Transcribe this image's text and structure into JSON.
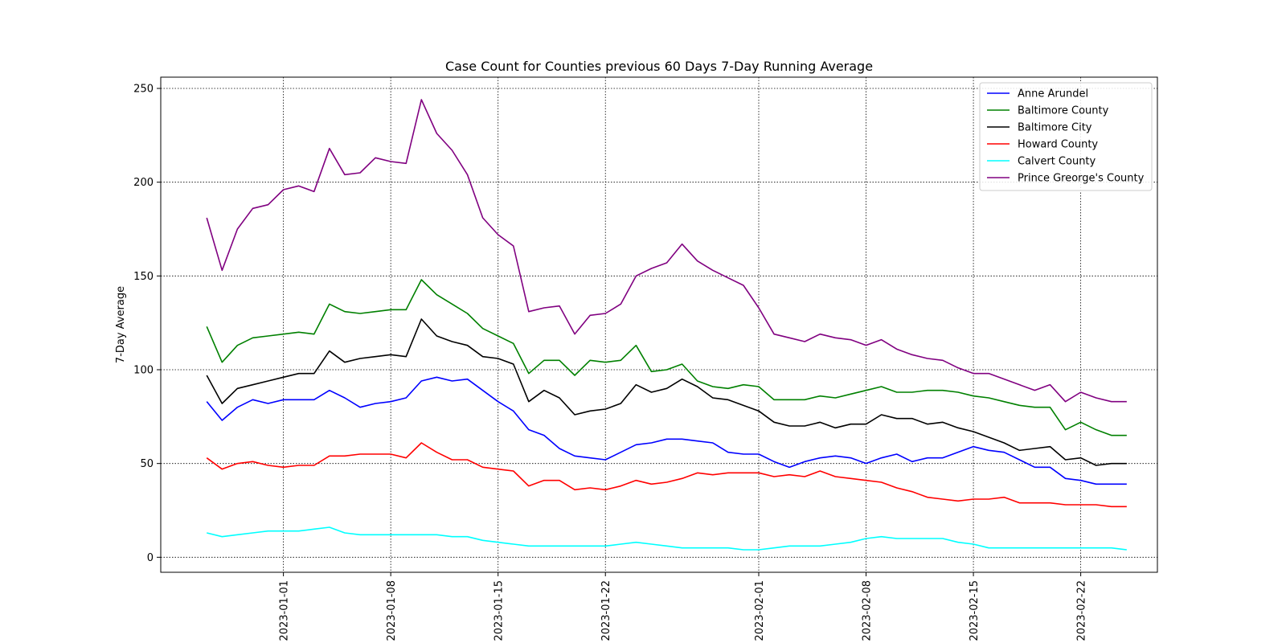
{
  "chart_data": {
    "type": "line",
    "title": "Case Count for Counties previous 60 Days 7-Day Running Average",
    "xlabel": "",
    "ylabel": "7-Day Average",
    "ylim": [
      -8,
      256
    ],
    "xlim": [
      "2022-12-24",
      "2023-02-27"
    ],
    "grid": true,
    "grid_style": "dotted",
    "legend_position": "top-right",
    "y_ticks": [
      0,
      50,
      100,
      150,
      200,
      250
    ],
    "x_ticks": [
      "2023-01-01",
      "2023-01-08",
      "2023-01-15",
      "2023-01-22",
      "2023-02-01",
      "2023-02-08",
      "2023-02-15",
      "2023-02-22"
    ],
    "x": [
      "2022-12-27",
      "2022-12-28",
      "2022-12-29",
      "2022-12-30",
      "2022-12-31",
      "2023-01-01",
      "2023-01-02",
      "2023-01-03",
      "2023-01-04",
      "2023-01-05",
      "2023-01-06",
      "2023-01-07",
      "2023-01-08",
      "2023-01-09",
      "2023-01-10",
      "2023-01-11",
      "2023-01-12",
      "2023-01-13",
      "2023-01-14",
      "2023-01-15",
      "2023-01-16",
      "2023-01-17",
      "2023-01-18",
      "2023-01-19",
      "2023-01-20",
      "2023-01-21",
      "2023-01-22",
      "2023-01-23",
      "2023-01-24",
      "2023-01-25",
      "2023-01-26",
      "2023-01-27",
      "2023-01-28",
      "2023-01-29",
      "2023-01-30",
      "2023-01-31",
      "2023-02-01",
      "2023-02-02",
      "2023-02-03",
      "2023-02-04",
      "2023-02-05",
      "2023-02-06",
      "2023-02-07",
      "2023-02-08",
      "2023-02-09",
      "2023-02-10",
      "2023-02-11",
      "2023-02-12",
      "2023-02-13",
      "2023-02-14",
      "2023-02-15",
      "2023-02-16",
      "2023-02-17",
      "2023-02-18",
      "2023-02-19",
      "2023-02-20",
      "2023-02-21",
      "2023-02-22",
      "2023-02-23",
      "2023-02-24",
      "2023-02-25"
    ],
    "series": [
      {
        "name": "Anne Arundel",
        "color": "#0000ff",
        "values": [
          83,
          73,
          80,
          84,
          82,
          84,
          84,
          84,
          89,
          85,
          80,
          82,
          83,
          85,
          94,
          96,
          94,
          95,
          89,
          83,
          78,
          68,
          65,
          58,
          54,
          53,
          52,
          56,
          60,
          61,
          63,
          63,
          62,
          61,
          56,
          55,
          55,
          51,
          48,
          51,
          53,
          54,
          53,
          50,
          53,
          55,
          51,
          53,
          53,
          56,
          59,
          57,
          56,
          52,
          48,
          48,
          42,
          41,
          39,
          39,
          39
        ]
      },
      {
        "name": "Baltimore County",
        "color": "#008000",
        "values": [
          123,
          104,
          113,
          117,
          118,
          119,
          120,
          119,
          135,
          131,
          130,
          131,
          132,
          132,
          148,
          140,
          135,
          130,
          122,
          118,
          114,
          98,
          105,
          105,
          97,
          105,
          104,
          105,
          113,
          99,
          100,
          103,
          94,
          91,
          90,
          92,
          91,
          84,
          84,
          84,
          86,
          85,
          87,
          89,
          91,
          88,
          88,
          89,
          89,
          88,
          86,
          85,
          83,
          81,
          80,
          80,
          68,
          72,
          68,
          65,
          65
        ]
      },
      {
        "name": "Baltimore City",
        "color": "#000000",
        "values": [
          97,
          82,
          90,
          92,
          94,
          96,
          98,
          98,
          110,
          104,
          106,
          107,
          108,
          107,
          127,
          118,
          115,
          113,
          107,
          106,
          103,
          83,
          89,
          85,
          76,
          78,
          79,
          82,
          92,
          88,
          90,
          95,
          91,
          85,
          84,
          81,
          78,
          72,
          70,
          70,
          72,
          69,
          71,
          71,
          76,
          74,
          74,
          71,
          72,
          69,
          67,
          64,
          61,
          57,
          58,
          59,
          52,
          53,
          49,
          50,
          50
        ]
      },
      {
        "name": "Howard County",
        "color": "#ff0000",
        "values": [
          53,
          47,
          50,
          51,
          49,
          48,
          49,
          49,
          54,
          54,
          55,
          55,
          55,
          53,
          61,
          56,
          52,
          52,
          48,
          47,
          46,
          38,
          41,
          41,
          36,
          37,
          36,
          38,
          41,
          39,
          40,
          42,
          45,
          44,
          45,
          45,
          45,
          43,
          44,
          43,
          46,
          43,
          42,
          41,
          40,
          37,
          35,
          32,
          31,
          30,
          31,
          31,
          32,
          29,
          29,
          29,
          28,
          28,
          28,
          27,
          27
        ]
      },
      {
        "name": "Calvert County",
        "color": "#00ffff",
        "values": [
          13,
          11,
          12,
          13,
          14,
          14,
          14,
          15,
          16,
          13,
          12,
          12,
          12,
          12,
          12,
          12,
          11,
          11,
          9,
          8,
          7,
          6,
          6,
          6,
          6,
          6,
          6,
          7,
          8,
          7,
          6,
          5,
          5,
          5,
          5,
          4,
          4,
          5,
          6,
          6,
          6,
          7,
          8,
          10,
          11,
          10,
          10,
          10,
          10,
          8,
          7,
          5,
          5,
          5,
          5,
          5,
          5,
          5,
          5,
          5,
          4
        ]
      },
      {
        "name": "Prince Greorge's County",
        "color": "#800080",
        "values": [
          181,
          153,
          175,
          186,
          188,
          196,
          198,
          195,
          218,
          204,
          205,
          213,
          211,
          210,
          244,
          226,
          217,
          204,
          181,
          172,
          166,
          131,
          133,
          134,
          119,
          129,
          130,
          135,
          150,
          154,
          157,
          167,
          158,
          153,
          149,
          145,
          133,
          119,
          117,
          115,
          119,
          117,
          116,
          113,
          116,
          111,
          108,
          106,
          105,
          101,
          98,
          98,
          95,
          92,
          89,
          92,
          83,
          88,
          85,
          83,
          83
        ]
      }
    ]
  }
}
